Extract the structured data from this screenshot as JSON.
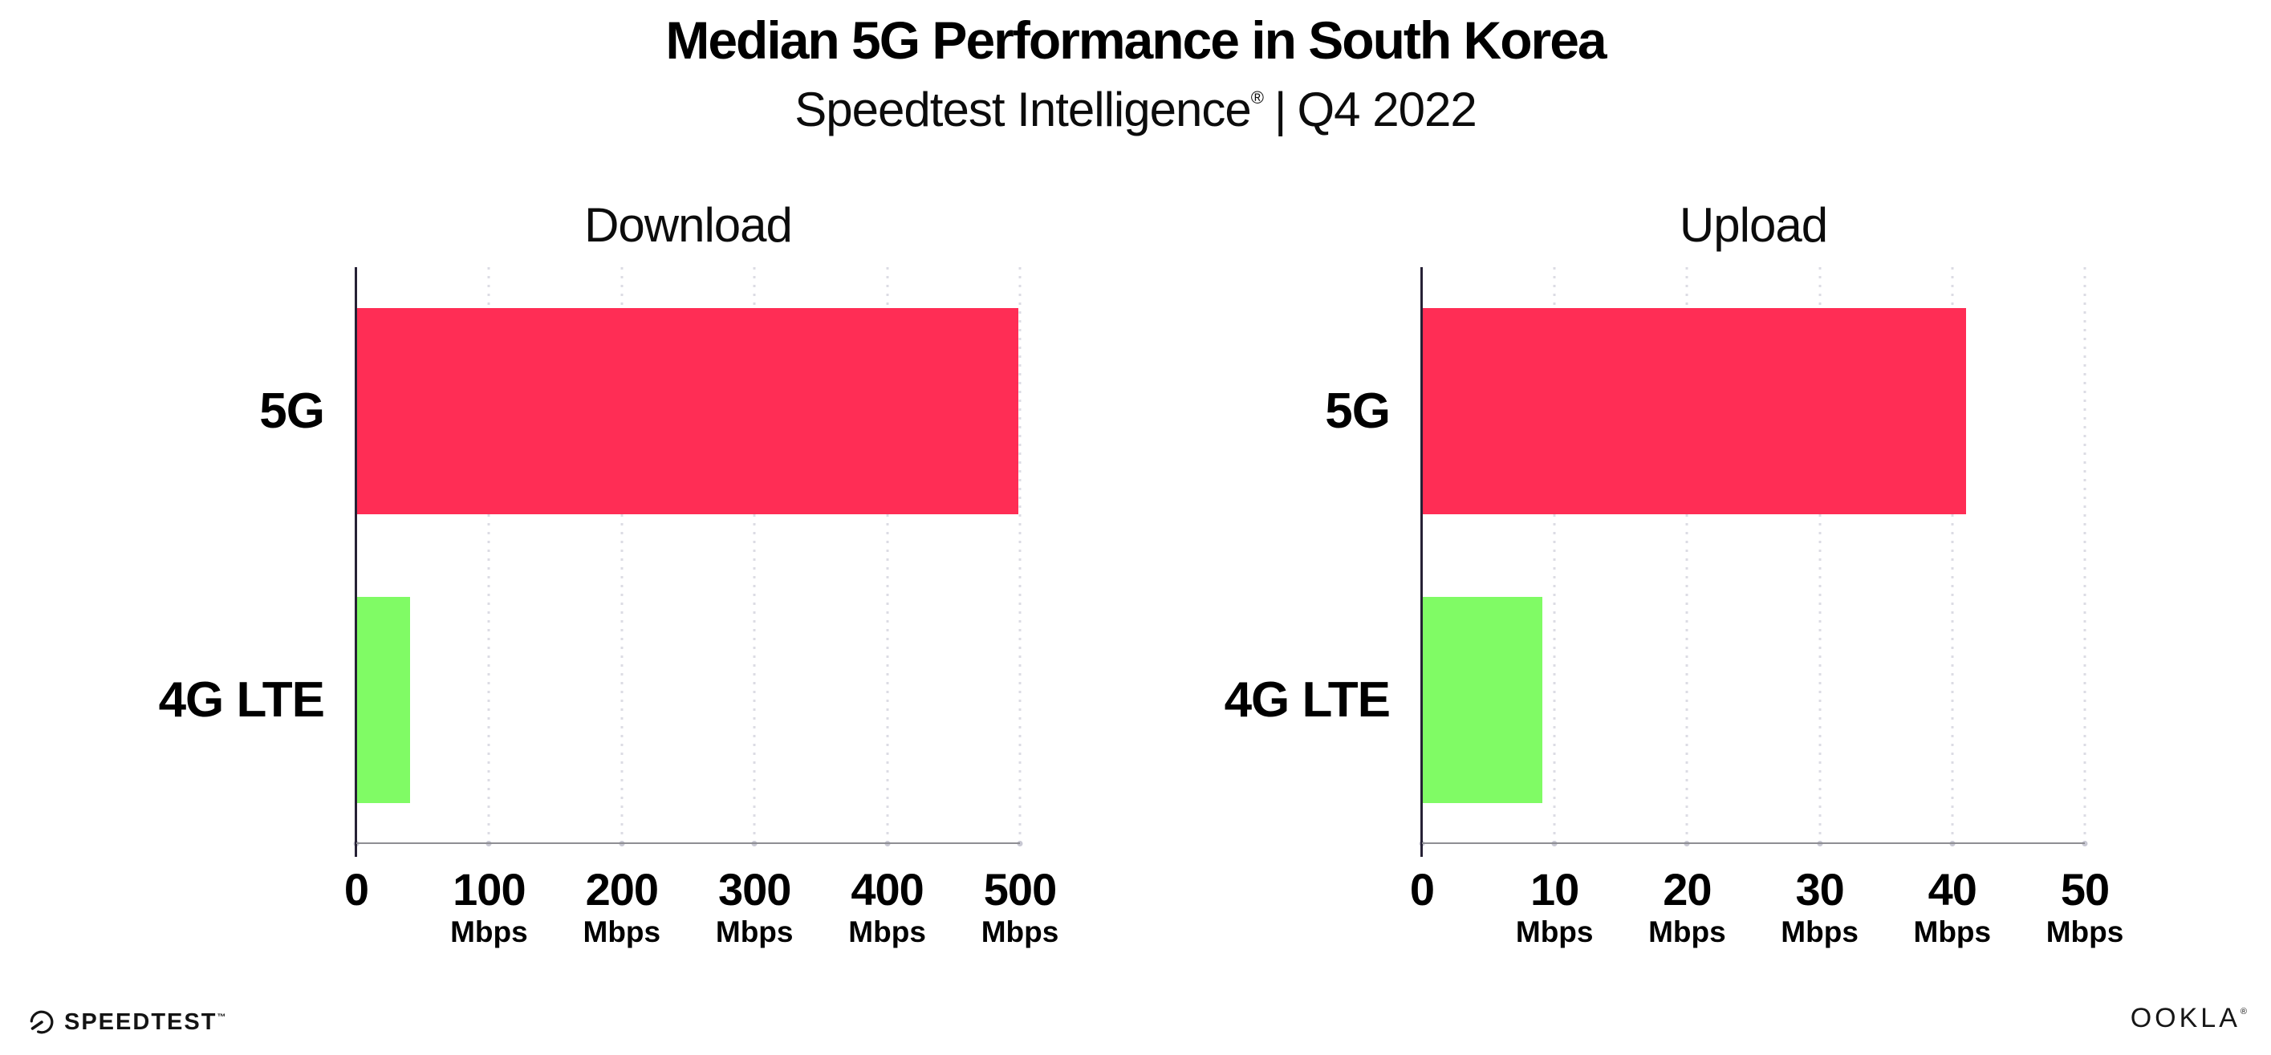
{
  "header": {
    "title": "Median 5G Performance in South Korea",
    "subtitle_brand": "Speedtest Intelligence",
    "subtitle_reg": "®",
    "subtitle_pipe": "|",
    "subtitle_period": "Q4 2022"
  },
  "chart_data": [
    {
      "type": "bar",
      "orientation": "horizontal",
      "title": "Download",
      "categories": [
        "5G",
        "4G LTE"
      ],
      "values": [
        499,
        40
      ],
      "unit": "Mbps",
      "xlim": [
        0,
        500
      ],
      "xticks": [
        0,
        100,
        200,
        300,
        400,
        500
      ],
      "bar_colors": [
        "#FF2D55",
        "#80FB65"
      ],
      "grid": "vertical-dotted",
      "legend": "none"
    },
    {
      "type": "bar",
      "orientation": "horizontal",
      "title": "Upload",
      "categories": [
        "5G",
        "4G LTE"
      ],
      "values": [
        41,
        9
      ],
      "unit": "Mbps",
      "xlim": [
        0,
        50
      ],
      "xticks": [
        0,
        10,
        20,
        30,
        40,
        50
      ],
      "bar_colors": [
        "#FF2D55",
        "#80FB65"
      ],
      "grid": "vertical-dotted",
      "legend": "none"
    }
  ],
  "footer": {
    "speedtest_label": "SPEEDTEST",
    "speedtest_mark": "™",
    "ookla_label": "OOKLA",
    "ookla_mark": "®"
  },
  "colors": {
    "bar_5g": "#FF2D55",
    "bar_4g_lte": "#80FB65",
    "axis_line": "#262135",
    "baseline": "#8E8E93",
    "gridline_dots": "#DCDCE4",
    "text": "#000000",
    "background": "#FFFFFF"
  }
}
